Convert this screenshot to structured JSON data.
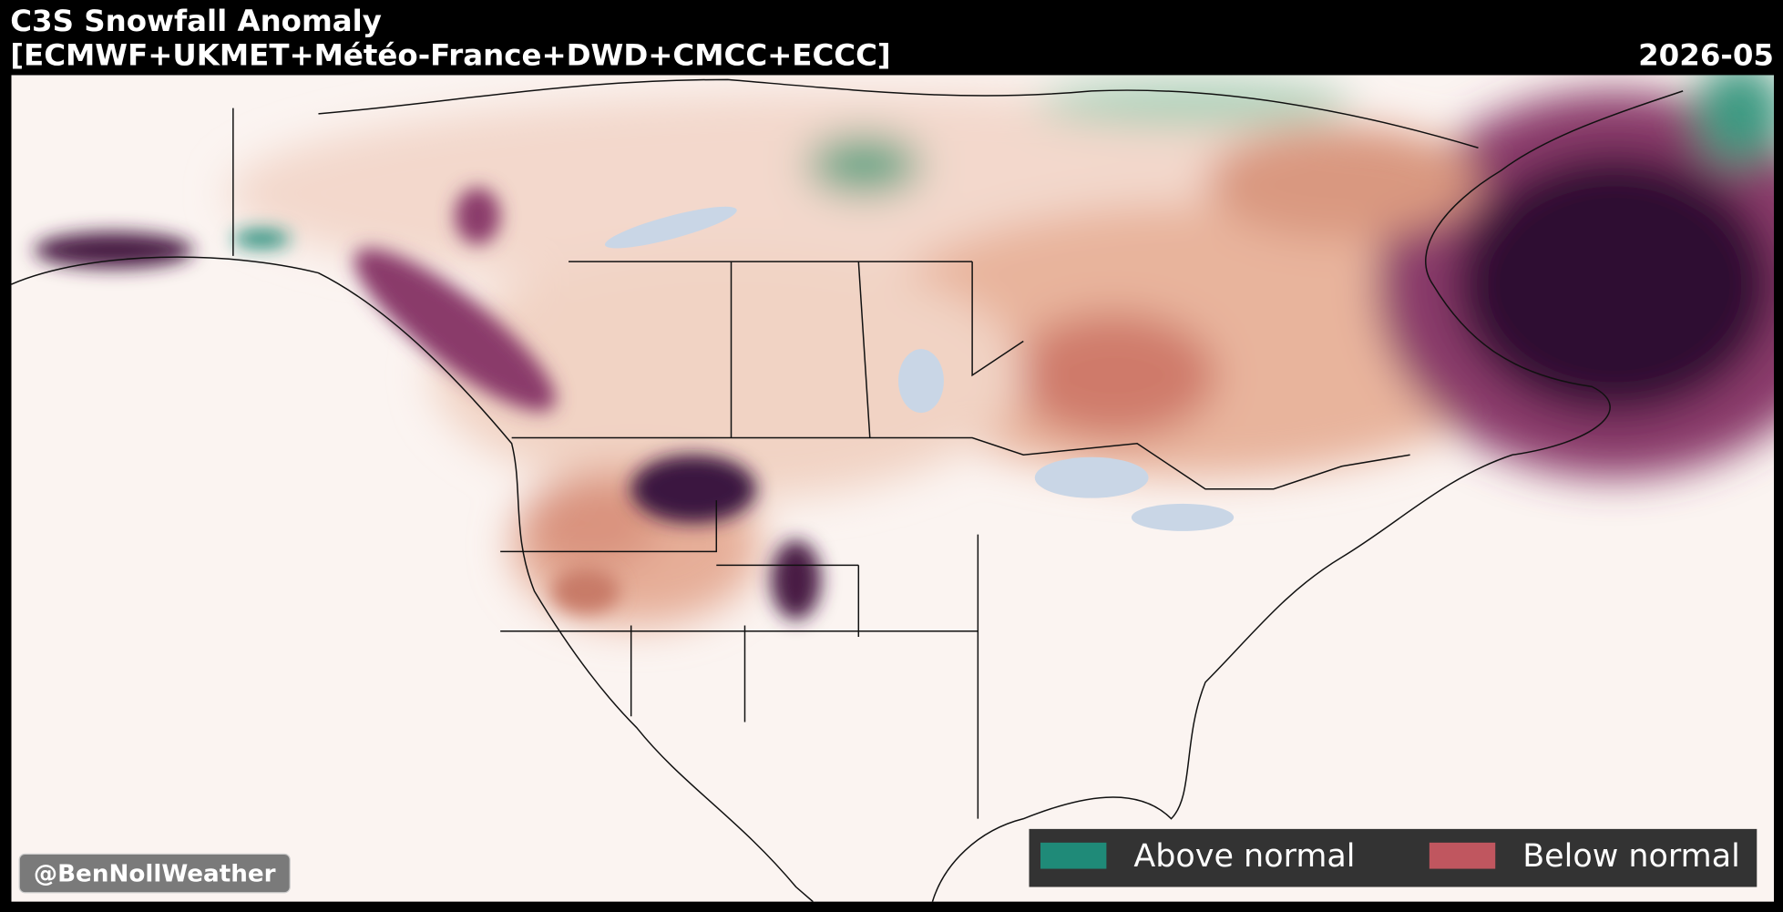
{
  "header": {
    "title": "C3S Snowfall Anomaly",
    "subtitle": "[ECMWF+UKMET+Météo-France+DWD+CMCC+ECCC]",
    "date": "2026-05"
  },
  "legend": {
    "items": [
      {
        "label": "Above normal",
        "color": "#1f8a78"
      },
      {
        "label": "Below normal",
        "color": "#c0565f"
      }
    ]
  },
  "credit": "@BenNollWeather"
}
